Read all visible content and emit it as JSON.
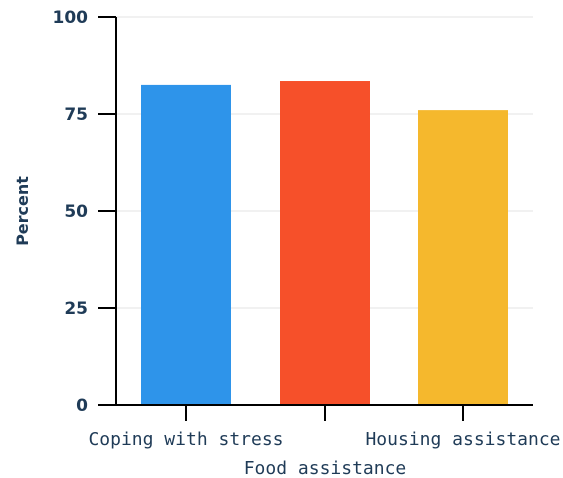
{
  "chart_data": {
    "type": "bar",
    "categories": [
      "Coping with stress",
      "Food assistance",
      "Housing assistance"
    ],
    "values": [
      82.5,
      83.5,
      76
    ],
    "colors": [
      "#2e94ea",
      "#f6502a",
      "#f5b82d"
    ],
    "ylabel": "Percent",
    "xlabel": "",
    "ylim": [
      0,
      100
    ],
    "yticks": [
      "0",
      "25",
      "50",
      "75",
      "100"
    ],
    "grid": true
  }
}
